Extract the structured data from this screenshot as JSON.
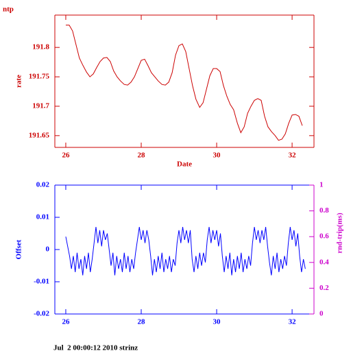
{
  "chart_data": [
    {
      "type": "line",
      "title": "ntp",
      "xlabel": "Date",
      "ylabel": "rate",
      "color": "#cc0000",
      "xlim": [
        25.71,
        32.58
      ],
      "xticks": [
        26,
        28,
        30,
        32
      ],
      "ylim": [
        191.63,
        191.855
      ],
      "yticks": [
        191.65,
        191.7,
        191.75,
        191.8
      ],
      "x": [
        26.0,
        26.09,
        26.18,
        26.27,
        26.36,
        26.45,
        26.55,
        26.64,
        26.73,
        26.82,
        26.91,
        27.0,
        27.09,
        27.18,
        27.27,
        27.36,
        27.45,
        27.55,
        27.64,
        27.73,
        27.82,
        27.91,
        28.0,
        28.09,
        28.18,
        28.27,
        28.36,
        28.45,
        28.55,
        28.64,
        28.73,
        28.82,
        28.91,
        29.0,
        29.09,
        29.18,
        29.27,
        29.36,
        29.45,
        29.55,
        29.64,
        29.73,
        29.82,
        29.91,
        30.0,
        30.09,
        30.18,
        30.27,
        30.36,
        30.45,
        30.55,
        30.64,
        30.73,
        30.82,
        30.91,
        31.0,
        31.09,
        31.18,
        31.27,
        31.36,
        31.45,
        31.55,
        31.64,
        31.73,
        31.82,
        31.91,
        32.0,
        32.09,
        32.18,
        32.27
      ],
      "values": [
        191.838,
        191.838,
        191.828,
        191.805,
        191.782,
        191.77,
        191.758,
        191.75,
        191.755,
        191.766,
        191.776,
        191.782,
        191.783,
        191.776,
        191.76,
        191.75,
        191.743,
        191.737,
        191.736,
        191.741,
        191.75,
        191.764,
        191.778,
        191.78,
        191.769,
        191.757,
        191.75,
        191.743,
        191.737,
        191.736,
        191.741,
        191.757,
        191.787,
        191.803,
        191.806,
        191.793,
        191.764,
        191.735,
        191.712,
        191.698,
        191.706,
        191.729,
        191.752,
        191.764,
        191.764,
        191.759,
        191.735,
        191.717,
        191.703,
        191.694,
        191.671,
        191.655,
        191.665,
        191.688,
        191.7,
        191.71,
        191.713,
        191.71,
        191.683,
        191.665,
        191.657,
        191.65,
        191.642,
        191.644,
        191.653,
        191.671,
        191.685,
        191.686,
        191.683,
        191.667
      ]
    },
    {
      "type": "line",
      "ylabel": "Offset",
      "y2label": "rnd-trip(ms)",
      "color": "#0000ff",
      "y2color": "#cc00cc",
      "xlim": [
        25.71,
        32.58
      ],
      "xticks": [
        26,
        28,
        30,
        32
      ],
      "ylim": [
        -0.02,
        0.02
      ],
      "yticks": [
        -0.02,
        -0.01,
        0,
        0.01,
        0.02
      ],
      "y2lim": [
        0,
        1
      ],
      "y2ticks": [
        0,
        0.2,
        0.4,
        0.6,
        0.8,
        1
      ],
      "x": [
        26.0,
        26.05,
        26.1,
        26.15,
        26.2,
        26.25,
        26.3,
        26.35,
        26.4,
        26.45,
        26.5,
        26.55,
        26.6,
        26.65,
        26.7,
        26.75,
        26.8,
        26.85,
        26.9,
        26.95,
        27.0,
        27.05,
        27.1,
        27.15,
        27.2,
        27.25,
        27.3,
        27.35,
        27.4,
        27.45,
        27.5,
        27.55,
        27.6,
        27.65,
        27.7,
        27.75,
        27.8,
        27.85,
        27.9,
        27.95,
        28.0,
        28.05,
        28.1,
        28.15,
        28.2,
        28.25,
        28.3,
        28.35,
        28.4,
        28.45,
        28.5,
        28.55,
        28.6,
        28.65,
        28.7,
        28.75,
        28.8,
        28.85,
        28.9,
        28.95,
        29.0,
        29.05,
        29.1,
        29.15,
        29.2,
        29.25,
        29.3,
        29.35,
        29.4,
        29.45,
        29.5,
        29.55,
        29.6,
        29.65,
        29.7,
        29.75,
        29.8,
        29.85,
        29.9,
        29.95,
        30.0,
        30.05,
        30.1,
        30.15,
        30.2,
        30.25,
        30.3,
        30.35,
        30.4,
        30.45,
        30.5,
        30.55,
        30.6,
        30.65,
        30.7,
        30.75,
        30.8,
        30.85,
        30.9,
        30.95,
        31.0,
        31.05,
        31.1,
        31.15,
        31.2,
        31.25,
        31.3,
        31.35,
        31.4,
        31.45,
        31.5,
        31.55,
        31.6,
        31.65,
        31.7,
        31.75,
        31.8,
        31.85,
        31.9,
        31.95,
        32.0,
        32.05,
        32.1,
        32.15,
        32.2,
        32.25,
        32.3,
        32.35
      ],
      "values": [
        0.004,
        0.001,
        -0.002,
        -0.006,
        -0.002,
        -0.007,
        -0.001,
        -0.006,
        -0.003,
        -0.008,
        -0.002,
        -0.006,
        -0.001,
        -0.007,
        -0.003,
        0.002,
        0.007,
        0.002,
        0.006,
        0.001,
        0.006,
        0.003,
        0.005,
        0.0,
        -0.005,
        -0.001,
        -0.008,
        -0.002,
        -0.006,
        -0.003,
        -0.007,
        -0.001,
        -0.006,
        -0.002,
        -0.007,
        -0.003,
        -0.006,
        -0.001,
        0.003,
        0.007,
        0.003,
        0.006,
        0.002,
        0.006,
        0.003,
        -0.002,
        -0.008,
        -0.003,
        -0.007,
        -0.002,
        -0.006,
        -0.001,
        -0.007,
        -0.003,
        -0.006,
        -0.002,
        -0.007,
        -0.003,
        -0.005,
        0.002,
        0.006,
        0.002,
        0.007,
        0.003,
        0.006,
        0.002,
        0.006,
        -0.003,
        -0.007,
        -0.002,
        -0.006,
        -0.001,
        -0.005,
        -0.001,
        -0.004,
        0.003,
        0.007,
        0.002,
        0.006,
        0.003,
        0.006,
        0.001,
        0.005,
        -0.002,
        -0.007,
        -0.002,
        -0.006,
        -0.001,
        -0.008,
        -0.003,
        -0.007,
        -0.002,
        -0.006,
        -0.001,
        -0.007,
        -0.003,
        -0.006,
        -0.002,
        -0.005,
        0.002,
        0.007,
        0.003,
        0.006,
        0.002,
        0.006,
        0.003,
        0.007,
        0.001,
        -0.004,
        -0.008,
        -0.002,
        -0.006,
        -0.001,
        -0.007,
        -0.003,
        -0.006,
        -0.002,
        -0.005,
        0.002,
        0.007,
        0.003,
        0.006,
        0.001,
        0.005,
        -0.002,
        -0.007,
        -0.003,
        -0.006
      ]
    }
  ],
  "footer": "Jul  2 00:00:12 2010 strinz"
}
